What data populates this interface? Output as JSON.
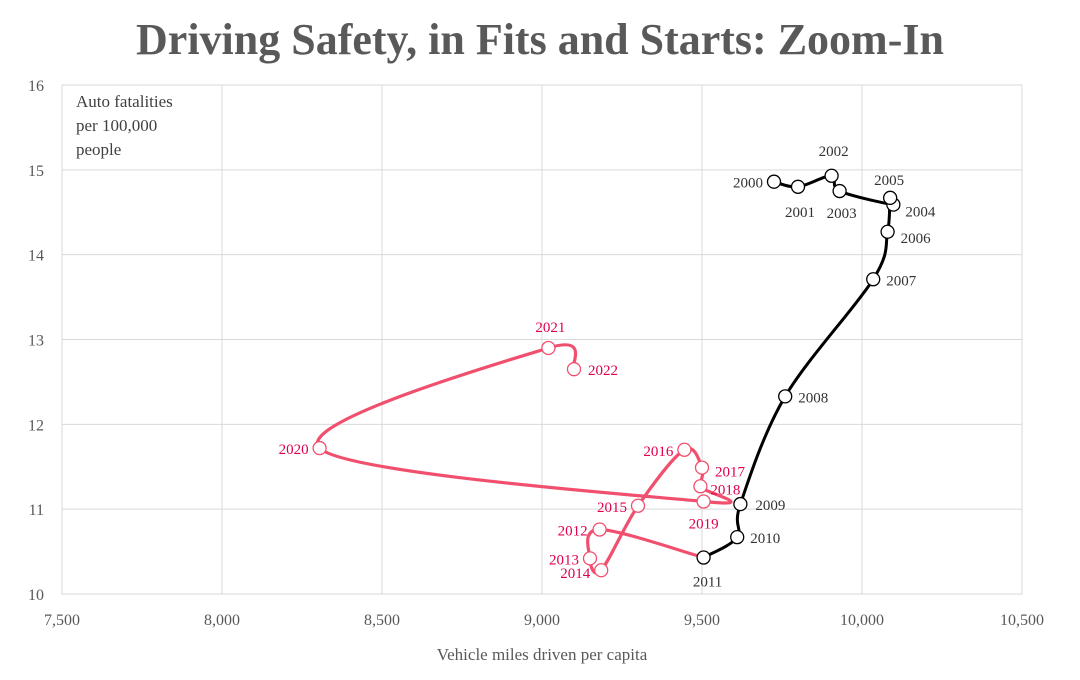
{
  "chart_data": {
    "type": "line",
    "title": "Driving Safety, in Fits and Starts: Zoom-In",
    "xlabel": "Vehicle miles driven per capita",
    "ylabel_lines": [
      "Auto fatalities",
      "per 100,000",
      "people"
    ],
    "xlim": [
      7500,
      10500
    ],
    "ylim": [
      10,
      16
    ],
    "x_ticks": [
      7500,
      8000,
      8500,
      9000,
      9500,
      10000,
      10500
    ],
    "x_tick_labels": [
      "7,500",
      "8,000",
      "8,500",
      "9,000",
      "9,500",
      "10,000",
      "10,500"
    ],
    "y_ticks": [
      10,
      11,
      12,
      13,
      14,
      15,
      16
    ],
    "y_tick_labels": [
      "10",
      "11",
      "12",
      "13",
      "14",
      "15",
      "16"
    ],
    "grid": true,
    "series": [
      {
        "color": "#000000",
        "points": [
          {
            "label": "2000",
            "x": 9725,
            "y": 14.86
          },
          {
            "label": "2001",
            "x": 9800,
            "y": 14.8
          },
          {
            "label": "2002",
            "x": 9905,
            "y": 14.93
          },
          {
            "label": "2003",
            "x": 9930,
            "y": 14.75
          },
          {
            "label": "2004",
            "x": 10098,
            "y": 14.59
          },
          {
            "label": "2005",
            "x": 10088,
            "y": 14.67
          },
          {
            "label": "2006",
            "x": 10080,
            "y": 14.27
          },
          {
            "label": "2007",
            "x": 10035,
            "y": 13.71
          },
          {
            "label": "2008",
            "x": 9760,
            "y": 12.33
          },
          {
            "label": "2009",
            "x": 9620,
            "y": 11.06
          },
          {
            "label": "2010",
            "x": 9610,
            "y": 10.67
          },
          {
            "label": "2011",
            "x": 9505,
            "y": 10.43
          }
        ]
      },
      {
        "color": "#f0506e",
        "points": [
          {
            "label": "2011",
            "x": 9505,
            "y": 10.43
          },
          {
            "label": "2012",
            "x": 9180,
            "y": 10.76
          },
          {
            "label": "2013",
            "x": 9150,
            "y": 10.42
          },
          {
            "label": "2014",
            "x": 9185,
            "y": 10.28
          },
          {
            "label": "2015",
            "x": 9300,
            "y": 11.04
          },
          {
            "label": "2016",
            "x": 9445,
            "y": 11.7
          },
          {
            "label": "2017",
            "x": 9500,
            "y": 11.49
          },
          {
            "label": "2018",
            "x": 9495,
            "y": 11.27
          },
          {
            "label": "2019",
            "x": 9505,
            "y": 11.09
          },
          {
            "label": "2020",
            "x": 8305,
            "y": 11.72
          },
          {
            "label": "2021",
            "x": 9020,
            "y": 12.9
          },
          {
            "label": "2022",
            "x": 9100,
            "y": 12.65
          }
        ]
      }
    ],
    "label_colors": {
      "black_series": "#333333",
      "pink_series": "#e0004d"
    }
  }
}
